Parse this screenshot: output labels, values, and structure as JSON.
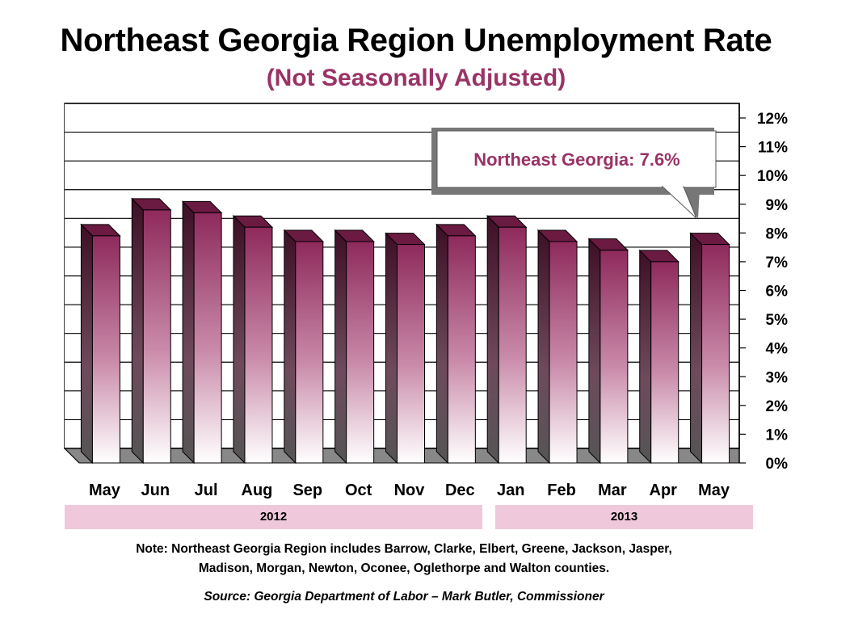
{
  "chart_data": {
    "type": "bar",
    "title": "Northeast Georgia Region Unemployment Rate",
    "subtitle": "(Not Seasonally Adjusted)",
    "categories": [
      "May",
      "Jun",
      "Jul",
      "Aug",
      "Sep",
      "Oct",
      "Nov",
      "Dec",
      "Jan",
      "Feb",
      "Mar",
      "Apr",
      "May"
    ],
    "series": [
      {
        "values": [
          7.9,
          8.8,
          8.7,
          8.2,
          7.7,
          7.7,
          7.6,
          7.9,
          8.2,
          7.7,
          7.4,
          7.0,
          7.6
        ]
      }
    ],
    "year_groups": [
      {
        "label": "2012",
        "categories": [
          "May",
          "Jun",
          "Jul",
          "Aug",
          "Sep",
          "Oct",
          "Nov",
          "Dec"
        ]
      },
      {
        "label": "2013",
        "categories": [
          "Jan",
          "Feb",
          "Mar",
          "Apr",
          "May"
        ]
      }
    ],
    "y_ticks": [
      "0%",
      "1%",
      "2%",
      "3%",
      "4%",
      "5%",
      "6%",
      "7%",
      "8%",
      "9%",
      "10%",
      "11%",
      "12%"
    ],
    "ylim": [
      0,
      12
    ],
    "y_axis_side": "right",
    "grid": true,
    "callout": "Northeast Georgia: 7.6%",
    "colors": {
      "bar_top": "#8e2a5c",
      "bar_bottom": "#ffffff",
      "accent": "#993366",
      "year_band": "#f0c8dc"
    }
  },
  "note": "Note: Northeast Georgia Region includes Barrow, Clarke, Elbert, Greene, Jackson, Jasper,",
  "note_line2": "Madison, Morgan, Newton, Oconee, Oglethorpe and Walton counties.",
  "source": "Source: Georgia Department of Labor – Mark Butler, Commissioner"
}
